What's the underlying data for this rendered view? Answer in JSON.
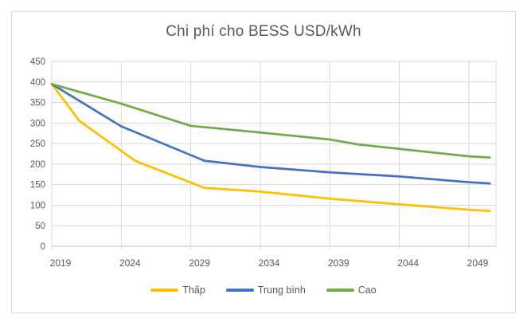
{
  "chart_data": {
    "type": "line",
    "title": "Chi phí cho BESS USD/kWh",
    "xlabel": "",
    "ylabel": "",
    "unit": "USD/kWh",
    "grid": true,
    "legend_position": "bottom",
    "x_axis": {
      "ticks": [
        2019,
        2024,
        2029,
        2034,
        2039,
        2044,
        2049
      ],
      "min": 2019,
      "max": 2051
    },
    "y_axis": {
      "ticks": [
        450,
        400,
        350,
        300,
        250,
        200,
        150,
        100,
        50,
        0
      ],
      "min": 0,
      "max": 450
    },
    "series": [
      {
        "name": "Thấp",
        "color": "#FFC000",
        "points": [
          [
            2019,
            395
          ],
          [
            2021,
            305
          ],
          [
            2025,
            208
          ],
          [
            2030,
            142
          ],
          [
            2034,
            133
          ],
          [
            2039,
            116
          ],
          [
            2044,
            102
          ],
          [
            2049,
            89
          ],
          [
            2050.5,
            86
          ]
        ]
      },
      {
        "name": "Trung bình",
        "color": "#4472C4",
        "points": [
          [
            2019,
            395
          ],
          [
            2024,
            292
          ],
          [
            2030,
            208
          ],
          [
            2034,
            193
          ],
          [
            2039,
            180
          ],
          [
            2044,
            170
          ],
          [
            2049,
            156
          ],
          [
            2050.5,
            153
          ]
        ]
      },
      {
        "name": "Cao",
        "color": "#70AD47",
        "points": [
          [
            2019,
            395
          ],
          [
            2024,
            347
          ],
          [
            2029,
            293
          ],
          [
            2034,
            277
          ],
          [
            2039,
            260
          ],
          [
            2041,
            248
          ],
          [
            2044,
            237
          ],
          [
            2049,
            219
          ],
          [
            2050.5,
            216
          ]
        ]
      }
    ]
  },
  "palette": {
    "gridline": "#d9d9d9",
    "axis_line": "#bfbfbf",
    "text": "#595959",
    "frame_border": "#d9d9d9",
    "background": "#ffffff"
  }
}
